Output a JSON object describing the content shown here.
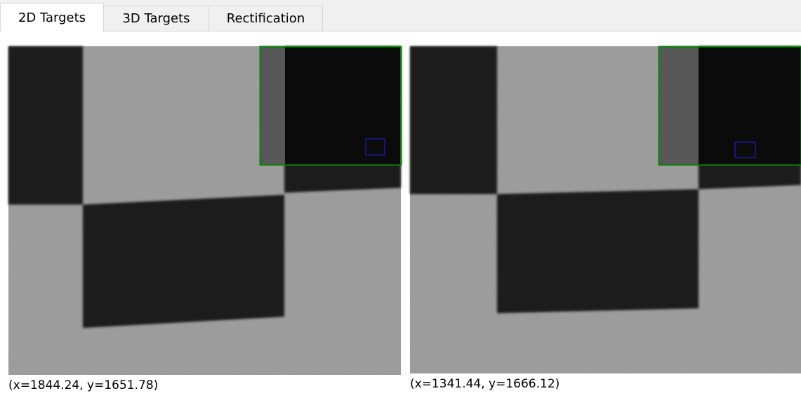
{
  "tabs": [
    "2D Targets",
    "3D Targets",
    "Rectification"
  ],
  "panels": [
    {
      "coordinates": "(x=1844.24, y=1651.78)"
    },
    {
      "coordinates": "(x=1341.44, y=1666.12)"
    }
  ]
}
